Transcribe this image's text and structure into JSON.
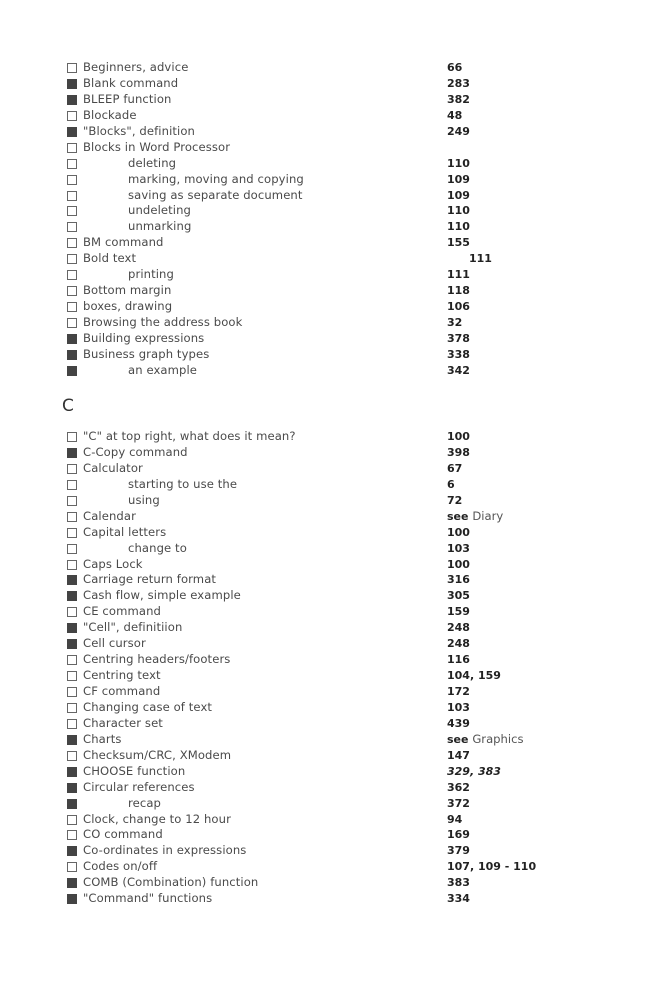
{
  "sections": [
    {
      "id": "B",
      "heading": "",
      "entries": [
        {
          "label": "Beginners, advice",
          "page": "66",
          "filled": false,
          "indent": false
        },
        {
          "label": "Blank command",
          "page": "283",
          "filled": true,
          "indent": false
        },
        {
          "label": "BLEEP function",
          "page": "382",
          "filled": true,
          "indent": false
        },
        {
          "label": "Blockade",
          "page": "48",
          "filled": false,
          "indent": false
        },
        {
          "label": "\"Blocks\", definition",
          "page": "249",
          "filled": true,
          "indent": false
        },
        {
          "label": "Blocks in Word Processor",
          "page": "",
          "filled": false,
          "indent": false
        },
        {
          "label": "deleting",
          "page": "110",
          "filled": false,
          "indent": true
        },
        {
          "label": "marking, moving and copying",
          "page": "109",
          "filled": false,
          "indent": true
        },
        {
          "label": "saving as separate document",
          "page": "109",
          "filled": false,
          "indent": true
        },
        {
          "label": "undeleting",
          "page": "110",
          "filled": false,
          "indent": true
        },
        {
          "label": "unmarking",
          "page": "110",
          "filled": false,
          "indent": true
        },
        {
          "label": "BM command",
          "page": "155",
          "filled": false,
          "indent": false
        },
        {
          "label": "Bold text",
          "page": "111",
          "filled": false,
          "indent": false
        },
        {
          "label": "printing",
          "page": "111",
          "filled": false,
          "indent": true
        },
        {
          "label": "Bottom margin",
          "page": "118",
          "filled": false,
          "indent": false
        },
        {
          "label": "boxes, drawing",
          "page": "106",
          "filled": false,
          "indent": false
        },
        {
          "label": "Browsing the address book",
          "page": "32",
          "filled": false,
          "indent": false
        },
        {
          "label": "Building expressions",
          "page": "378",
          "filled": true,
          "indent": false
        },
        {
          "label": "Business graph types",
          "page": "338",
          "filled": true,
          "indent": false
        },
        {
          "label": "an example",
          "page": "342",
          "filled": true,
          "indent": true
        }
      ]
    },
    {
      "id": "C",
      "heading": "C",
      "entries": [
        {
          "label": "\"C\" at top right, what does it mean?",
          "page": "100",
          "filled": false,
          "indent": false
        },
        {
          "label": "C-Copy command",
          "page": "398",
          "filled": true,
          "indent": false
        },
        {
          "label": "Calculator",
          "page": "67",
          "filled": false,
          "indent": false
        },
        {
          "label": "starting to use the",
          "page": "6",
          "filled": false,
          "indent": true
        },
        {
          "label": "using",
          "page": "72",
          "filled": false,
          "indent": true
        },
        {
          "label": "Calendar",
          "page": "see",
          "page_extra": "Diary",
          "filled": false,
          "indent": false
        },
        {
          "label": "Capital letters",
          "page": "100",
          "filled": false,
          "indent": false
        },
        {
          "label": "change to",
          "page": "103",
          "filled": false,
          "indent": true
        },
        {
          "label": "Caps Lock",
          "page": "100",
          "filled": false,
          "indent": false
        },
        {
          "label": "Carriage return format",
          "page": "316",
          "filled": true,
          "indent": false
        },
        {
          "label": "Cash flow, simple example",
          "page": "305",
          "filled": true,
          "indent": false
        },
        {
          "label": "CE command",
          "page": "159",
          "filled": false,
          "indent": false
        },
        {
          "label": "\"Cell\", definitiion",
          "page": "248",
          "filled": true,
          "indent": false
        },
        {
          "label": "Cell cursor",
          "page": "248",
          "filled": true,
          "indent": false
        },
        {
          "label": "Centring headers/footers",
          "page": "116",
          "filled": false,
          "indent": false
        },
        {
          "label": "Centring text",
          "page": "104, 159",
          "filled": false,
          "indent": false
        },
        {
          "label": "CF command",
          "page": "172",
          "filled": false,
          "indent": false
        },
        {
          "label": "Changing case of text",
          "page": "103",
          "filled": false,
          "indent": false
        },
        {
          "label": "Character set",
          "page": "439",
          "filled": false,
          "indent": false
        },
        {
          "label": "Charts",
          "page": "see",
          "page_extra": "Graphics",
          "filled": true,
          "indent": false
        },
        {
          "label": "Checksum/CRC, XModem",
          "page": "147",
          "filled": false,
          "indent": false
        },
        {
          "label": "CHOOSE function",
          "page": "329, 383",
          "italic": true,
          "filled": true,
          "indent": false
        },
        {
          "label": "Circular references",
          "page": "362",
          "filled": true,
          "indent": false
        },
        {
          "label": "recap",
          "page": "372",
          "filled": true,
          "indent": true
        },
        {
          "label": "Clock, change to 12 hour",
          "page": "94",
          "filled": false,
          "indent": false
        },
        {
          "label": "CO command",
          "page": "169",
          "filled": false,
          "indent": false
        },
        {
          "label": "Co-ordinates in expressions",
          "page": "379",
          "filled": true,
          "indent": false
        },
        {
          "label": "Codes on/off",
          "page": "107, 109 - 110",
          "filled": false,
          "indent": false
        },
        {
          "label": "COMB (Combination) function",
          "page": "383",
          "filled": true,
          "indent": false
        },
        {
          "label": "\"Command\" functions",
          "page": "334",
          "filled": true,
          "indent": false
        }
      ]
    }
  ]
}
